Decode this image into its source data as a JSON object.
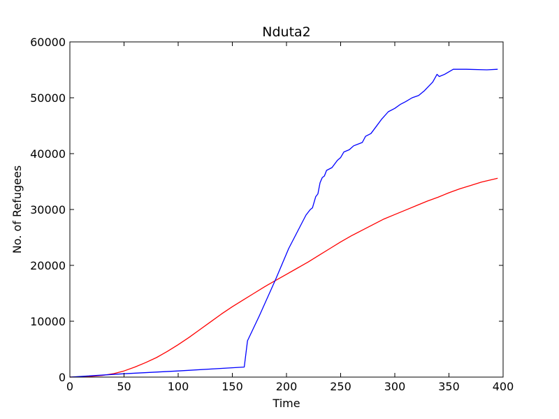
{
  "chart_data": {
    "type": "line",
    "title": "Nduta2",
    "xlabel": "Time",
    "ylabel": "No. of Refugees",
    "xlim": [
      0,
      400
    ],
    "ylim": [
      0,
      60000
    ],
    "xticks": [
      0,
      50,
      100,
      150,
      200,
      250,
      300,
      350,
      400
    ],
    "yticks": [
      0,
      10000,
      20000,
      30000,
      40000,
      50000,
      60000
    ],
    "grid": false,
    "legend": "none",
    "series": [
      {
        "color": "#ff0000",
        "points": [
          [
            0,
            0
          ],
          [
            10,
            60
          ],
          [
            20,
            150
          ],
          [
            30,
            300
          ],
          [
            40,
            600
          ],
          [
            50,
            1100
          ],
          [
            60,
            1800
          ],
          [
            70,
            2600
          ],
          [
            80,
            3500
          ],
          [
            90,
            4600
          ],
          [
            100,
            5800
          ],
          [
            110,
            7100
          ],
          [
            120,
            8500
          ],
          [
            130,
            9900
          ],
          [
            140,
            11300
          ],
          [
            150,
            12600
          ],
          [
            160,
            13800
          ],
          [
            170,
            15000
          ],
          [
            180,
            16200
          ],
          [
            190,
            17300
          ],
          [
            200,
            18400
          ],
          [
            210,
            19500
          ],
          [
            220,
            20600
          ],
          [
            230,
            21800
          ],
          [
            240,
            23000
          ],
          [
            250,
            24200
          ],
          [
            260,
            25300
          ],
          [
            270,
            26300
          ],
          [
            280,
            27300
          ],
          [
            290,
            28300
          ],
          [
            300,
            29100
          ],
          [
            310,
            29900
          ],
          [
            320,
            30700
          ],
          [
            330,
            31500
          ],
          [
            340,
            32200
          ],
          [
            350,
            33000
          ],
          [
            360,
            33700
          ],
          [
            370,
            34300
          ],
          [
            380,
            34900
          ],
          [
            395,
            35600
          ]
        ]
      },
      {
        "color": "#0000ff",
        "points": [
          [
            0,
            0
          ],
          [
            50,
            600
          ],
          [
            100,
            1100
          ],
          [
            161,
            1800
          ],
          [
            164,
            6500
          ],
          [
            175,
            11000
          ],
          [
            190,
            17500
          ],
          [
            202,
            23000
          ],
          [
            210,
            26000
          ],
          [
            218,
            29000
          ],
          [
            222,
            30000
          ],
          [
            224,
            30300
          ],
          [
            227,
            32300
          ],
          [
            229,
            32800
          ],
          [
            231,
            34800
          ],
          [
            233,
            35700
          ],
          [
            235,
            36000
          ],
          [
            237,
            37000
          ],
          [
            242,
            37500
          ],
          [
            247,
            38800
          ],
          [
            250,
            39300
          ],
          [
            253,
            40300
          ],
          [
            258,
            40700
          ],
          [
            262,
            41400
          ],
          [
            270,
            42000
          ],
          [
            273,
            43100
          ],
          [
            278,
            43600
          ],
          [
            283,
            44900
          ],
          [
            288,
            46200
          ],
          [
            294,
            47500
          ],
          [
            300,
            48100
          ],
          [
            305,
            48800
          ],
          [
            310,
            49300
          ],
          [
            316,
            50000
          ],
          [
            322,
            50400
          ],
          [
            327,
            51200
          ],
          [
            335,
            52800
          ],
          [
            339,
            54200
          ],
          [
            341,
            53800
          ],
          [
            346,
            54200
          ],
          [
            354,
            55100
          ],
          [
            366,
            55100
          ],
          [
            385,
            55000
          ],
          [
            395,
            55100
          ]
        ]
      }
    ]
  }
}
